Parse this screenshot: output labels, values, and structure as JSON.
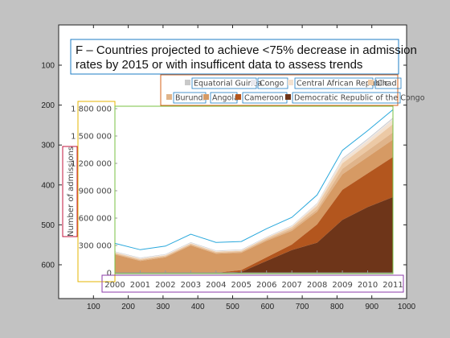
{
  "figure": {
    "outer_x_ticks": [
      "100",
      "200",
      "300",
      "400",
      "500",
      "600",
      "700",
      "800",
      "900",
      "1000"
    ],
    "outer_y_ticks": [
      "100",
      "200",
      "300",
      "400",
      "500",
      "600"
    ]
  },
  "chart_data": {
    "type": "area",
    "title_lines": [
      "F – Countries projected to achieve <75% decrease in admission",
      "rates by 2015 or with insufficent data to assess trends"
    ],
    "xlabel": "",
    "ylabel": "Number of admissions",
    "x": [
      2000,
      2001,
      2002,
      2003,
      2004,
      2005,
      2006,
      2007,
      2008,
      2009,
      2010,
      2011
    ],
    "x_tick_labels": [
      "2000",
      "2001",
      "2002",
      "2003",
      "2004",
      "2005",
      "2006",
      "2007",
      "2008",
      "2009",
      "2010",
      "2011"
    ],
    "ylim": [
      0,
      1800000
    ],
    "y_tick_values": [
      0,
      300000,
      600000,
      900000,
      1200000,
      1500000,
      1800000
    ],
    "y_tick_labels": [
      "0",
      "300 000",
      "600 000",
      "900 000",
      "1 200 000",
      "1 500 000",
      "1 800 000"
    ],
    "stacked": true,
    "series": [
      {
        "name": "Democratic Republic of the Congo",
        "color": "#6e3519",
        "values": [
          0,
          0,
          0,
          0,
          0,
          10000,
          130000,
          250000,
          330000,
          580000,
          720000,
          830000
        ]
      },
      {
        "name": "Cameroon",
        "color": "#b3561e",
        "values": [
          0,
          0,
          0,
          0,
          0,
          20000,
          40000,
          60000,
          200000,
          330000,
          370000,
          440000
        ]
      },
      {
        "name": "Angola",
        "color": "#d69a64",
        "values": [
          200000,
          130000,
          170000,
          300000,
          210000,
          190000,
          180000,
          150000,
          140000,
          170000,
          180000,
          190000
        ]
      },
      {
        "name": "Burundi",
        "color": "#e0b48a",
        "values": [
          10000,
          10000,
          10000,
          10000,
          10000,
          10000,
          15000,
          20000,
          25000,
          60000,
          70000,
          80000
        ]
      },
      {
        "name": "Chad",
        "color": "#ecc9a5",
        "values": [
          10000,
          10000,
          10000,
          10000,
          10000,
          10000,
          15000,
          20000,
          40000,
          60000,
          70000,
          90000
        ]
      },
      {
        "name": "Central African Republic",
        "color": "#f3e2d1",
        "values": [
          5000,
          5000,
          5000,
          5000,
          5000,
          5000,
          5000,
          10000,
          20000,
          35000,
          40000,
          50000
        ]
      },
      {
        "name": "Congo",
        "color": "#e8e8ee",
        "values": [
          5000,
          5000,
          5000,
          5000,
          5000,
          5000,
          5000,
          5000,
          5000,
          10000,
          10000,
          10000
        ]
      },
      {
        "name": "Equatorial Guinea",
        "color": "#c9c9c9",
        "values": [
          5000,
          5000,
          5000,
          5000,
          5000,
          5000,
          5000,
          5000,
          5000,
          10000,
          10000,
          10000
        ]
      }
    ],
    "legend_rows": [
      [
        "Equatorial Guinea",
        "Congo",
        "Central African Republic",
        "Chad"
      ],
      [
        "Burundi",
        "Angola",
        "Cameroon",
        "Democratic Republic of the Congo"
      ]
    ],
    "legend_position": "top-right"
  }
}
